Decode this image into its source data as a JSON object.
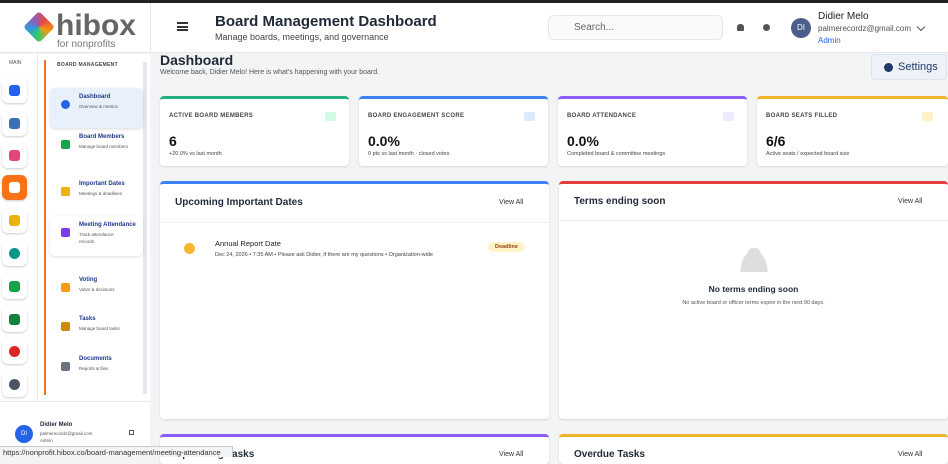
{
  "logo": {
    "name": "hibox",
    "tagline": "for nonprofits"
  },
  "header": {
    "title": "Board Management Dashboard",
    "subtitle": "Manage boards, meetings, and governance",
    "search_placeholder": "Search...",
    "user": {
      "initials": "DI",
      "name": "Didier Melo",
      "email": "palmerecordz@gmail.com",
      "role": "Admin"
    }
  },
  "rail": {
    "label": "MAIN"
  },
  "sidebar": {
    "section": "BOARD MANAGEMENT",
    "items": [
      {
        "title": "Dashboard",
        "subtitle": "Overview & metrics"
      },
      {
        "title": "Board Members",
        "subtitle": "Manage board members"
      },
      {
        "title": "Important Dates",
        "subtitle": "Meetings & deadlines"
      },
      {
        "title": "Meeting Attendance",
        "subtitle": "Track attendance records"
      },
      {
        "title": "Voting",
        "subtitle": "Votes & decisions"
      },
      {
        "title": "Tasks",
        "subtitle": "Manage board tasks"
      },
      {
        "title": "Documents",
        "subtitle": "Reports & files"
      }
    ],
    "user": {
      "initials": "DI",
      "name": "Didier Melo",
      "email": "palmerecordz@gmail.com",
      "role": "Admin"
    }
  },
  "page": {
    "title": "Dashboard",
    "welcome": "Welcome back, Didier Melo! Here is what's happening with your board.",
    "settings": "Settings"
  },
  "stats": [
    {
      "label": "ACTIVE BOARD MEMBERS",
      "value": "6",
      "note": "+20.0% vs last month"
    },
    {
      "label": "BOARD ENGAGEMENT SCORE",
      "value": "0.0%",
      "note": "0 pts vs last month · closed votes"
    },
    {
      "label": "BOARD ATTENDANCE",
      "value": "0.0%",
      "note": "Completed board & committee meetings"
    },
    {
      "label": "BOARD SEATS FILLED",
      "value": "6/6",
      "note": "Active seats / expected board size"
    }
  ],
  "upcoming": {
    "title": "Upcoming Important Dates",
    "link": "View All",
    "items": [
      {
        "title": "Annual Report Date",
        "detail": "Dec 24, 2026 • 7:35 AM • Please ask Didier, if there are my questions • Organization-wide",
        "badge": "Deadline"
      }
    ]
  },
  "terms": {
    "title": "Terms ending soon",
    "link": "View All",
    "empty_title": "No terms ending soon",
    "empty_text": "No active board or officer terms expire in the next 90 days."
  },
  "tasks": {
    "title": "Upcoming Tasks",
    "link": "View All"
  },
  "overdue": {
    "title": "Overdue Tasks",
    "link": "View All"
  },
  "status_bar": "https://nonprofit.hibox.co/board-management/meeting-attendance"
}
